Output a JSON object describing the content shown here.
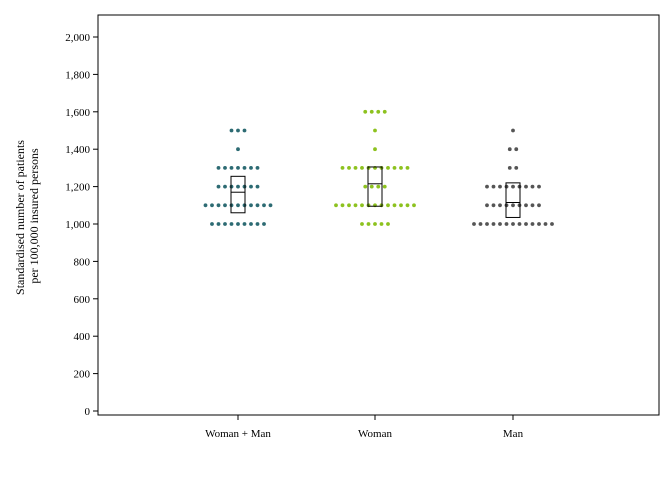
{
  "chart_data": {
    "type": "scatter",
    "subtype": "dot-strip-with-boxes",
    "title": "",
    "xlabel": "",
    "ylabel": [
      "Standardised number of patients",
      "per 100,000 insured persons"
    ],
    "ylim": [
      0,
      2100
    ],
    "yticks": [
      0,
      200,
      400,
      600,
      800,
      1000,
      1200,
      1400,
      1600,
      1800,
      2000
    ],
    "ytick_labels": [
      "0",
      "200",
      "400",
      "600",
      "800",
      "1,000",
      "1,200",
      "1,400",
      "1,600",
      "1,800",
      "2,000"
    ],
    "categories": [
      "Woman + Man",
      "Woman",
      "Man"
    ],
    "grid": false,
    "legend": "none",
    "series": [
      {
        "category": "Woman + Man",
        "color": "#2d6b73",
        "points_by_value": [
          {
            "value": 1500,
            "count": 3
          },
          {
            "value": 1400,
            "count": 1
          },
          {
            "value": 1300,
            "count": 7
          },
          {
            "value": 1200,
            "count": 7
          },
          {
            "value": 1100,
            "count": 11
          },
          {
            "value": 1000,
            "count": 9
          }
        ],
        "box": {
          "q1": 1060,
          "median": 1170,
          "q3": 1255
        }
      },
      {
        "category": "Woman",
        "color": "#8dc21f",
        "points_by_value": [
          {
            "value": 1600,
            "count": 4
          },
          {
            "value": 1500,
            "count": 1
          },
          {
            "value": 1400,
            "count": 1
          },
          {
            "value": 1300,
            "count": 11
          },
          {
            "value": 1200,
            "count": 4
          },
          {
            "value": 1100,
            "count": 13
          },
          {
            "value": 1000,
            "count": 5
          }
        ],
        "box": {
          "q1": 1095,
          "median": 1215,
          "q3": 1305
        }
      },
      {
        "category": "Man",
        "color": "#555555",
        "points_by_value": [
          {
            "value": 1500,
            "count": 1
          },
          {
            "value": 1400,
            "count": 2
          },
          {
            "value": 1300,
            "count": 2
          },
          {
            "value": 1200,
            "count": 9
          },
          {
            "value": 1100,
            "count": 9
          },
          {
            "value": 1000,
            "count": 13
          }
        ],
        "box": {
          "q1": 1035,
          "median": 1115,
          "q3": 1220
        }
      }
    ]
  }
}
